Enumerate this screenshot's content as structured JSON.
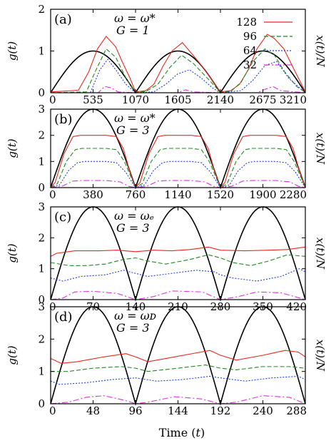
{
  "xlabel": "Time (t)",
  "ylabel_left": "g(t)",
  "ylabel_right": "x(t)/N",
  "legend": [
    "128",
    "96",
    "64",
    "32"
  ],
  "colors": {
    "128": "#e8291c",
    "96": "#1f8a1f",
    "64": "#2040e8",
    "32": "#e030e0",
    "x": "#000000"
  },
  "chart_data": [
    {
      "type": "line",
      "label": "(a)",
      "omega": "ω = ω*",
      "G": "G = 1",
      "xlim": [
        0,
        3210
      ],
      "ylim": [
        0,
        2
      ],
      "xticks": [
        0,
        535,
        1070,
        1605,
        2140,
        2675,
        3210
      ],
      "yticks": [
        0,
        1,
        2
      ],
      "period": 1070,
      "x_amplitude": 1,
      "series": [
        {
          "name": "128",
          "x": [
            0,
            350,
            480,
            590,
            700,
            820,
            900,
            1000,
            1070,
            1200,
            1300,
            1420,
            1530,
            1660,
            1750,
            1860,
            2000,
            2140,
            2270,
            2380,
            2490,
            2600,
            2730,
            2820,
            2940,
            3070,
            3210
          ],
          "y": [
            0.02,
            0.06,
            0.5,
            1.05,
            1.35,
            1.1,
            0.75,
            0.35,
            0.02,
            0.05,
            0.2,
            0.65,
            1.0,
            1.2,
            1.0,
            0.75,
            0.4,
            0.02,
            0.05,
            0.2,
            0.55,
            1.05,
            1.4,
            1.3,
            1.05,
            0.55,
            0.02
          ]
        },
        {
          "name": "96",
          "x": [
            0,
            450,
            560,
            700,
            820,
            950,
            1070,
            1200,
            1350,
            1500,
            1650,
            1800,
            2000,
            2140,
            2270,
            2400,
            2550,
            2700,
            2820,
            2950,
            3100,
            3210
          ],
          "y": [
            0.0,
            0.02,
            0.5,
            1.05,
            0.85,
            0.35,
            0.01,
            0.03,
            0.2,
            0.6,
            0.9,
            0.7,
            0.3,
            0.01,
            0.03,
            0.25,
            0.75,
            1.05,
            0.9,
            0.5,
            0.15,
            0.01
          ]
        },
        {
          "name": "64",
          "x": [
            0,
            500,
            620,
            720,
            820,
            950,
            1070,
            1300,
            1450,
            1600,
            1750,
            1900,
            2050,
            2140,
            2400,
            2550,
            2700,
            2850,
            3000,
            3210
          ],
          "y": [
            0.0,
            0.0,
            0.55,
            0.8,
            0.55,
            0.2,
            0.0,
            0.02,
            0.2,
            0.45,
            0.55,
            0.35,
            0.1,
            0.0,
            0.05,
            0.3,
            0.65,
            0.75,
            0.35,
            0.0
          ]
        },
        {
          "name": "32",
          "x": [
            0,
            600,
            680,
            760,
            850,
            1070,
            1600,
            1700,
            1800,
            2140,
            2600,
            2700,
            2800,
            2900,
            3210
          ],
          "y": [
            0.0,
            0.0,
            0.15,
            0.12,
            0.02,
            0.0,
            0.0,
            0.07,
            0.02,
            0.0,
            0.0,
            0.08,
            0.15,
            0.05,
            0.0
          ]
        }
      ]
    },
    {
      "type": "line",
      "label": "(b)",
      "omega": "ω = ω*",
      "G": "G = 3",
      "xlim": [
        0,
        2280
      ],
      "ylim": [
        0,
        3
      ],
      "xticks": [
        0,
        380,
        760,
        1140,
        1520,
        1900,
        2280
      ],
      "yticks": [
        0,
        1,
        2,
        3
      ],
      "period": 760,
      "x_amplitude": 3,
      "series": [
        {
          "name": "128",
          "x": [
            0,
            40,
            120,
            200,
            260,
            500,
            590,
            650,
            710,
            760,
            800,
            880,
            960,
            1020,
            1260,
            1350,
            1410,
            1470,
            1520,
            1560,
            1640,
            1720,
            1780,
            2020,
            2110,
            2170,
            2230,
            2280
          ],
          "y": [
            0.0,
            0.2,
            1.3,
            1.95,
            2.0,
            2.0,
            1.95,
            1.5,
            0.6,
            0.0,
            0.2,
            1.3,
            1.95,
            2.0,
            2.0,
            1.95,
            1.5,
            0.6,
            0.0,
            0.2,
            1.3,
            1.95,
            2.0,
            2.0,
            1.95,
            1.5,
            0.6,
            0.0
          ]
        },
        {
          "name": "96",
          "x": [
            0,
            60,
            140,
            220,
            280,
            500,
            590,
            660,
            720,
            760,
            820,
            900,
            980,
            1040,
            1260,
            1350,
            1420,
            1480,
            1520,
            1580,
            1660,
            1740,
            1800,
            2020,
            2110,
            2180,
            2240,
            2280
          ],
          "y": [
            0.0,
            0.15,
            1.0,
            1.45,
            1.5,
            1.5,
            1.45,
            1.0,
            0.4,
            0.0,
            0.15,
            1.0,
            1.45,
            1.5,
            1.5,
            1.45,
            1.0,
            0.4,
            0.0,
            0.15,
            1.0,
            1.45,
            1.5,
            1.5,
            1.45,
            1.0,
            0.4,
            0.0
          ]
        },
        {
          "name": "64",
          "x": [
            0,
            80,
            160,
            240,
            300,
            500,
            590,
            670,
            730,
            760,
            840,
            920,
            1000,
            1060,
            1260,
            1350,
            1430,
            1490,
            1520,
            1600,
            1680,
            1760,
            1820,
            2020,
            2110,
            2190,
            2250,
            2280
          ],
          "y": [
            0.0,
            0.1,
            0.65,
            0.95,
            1.0,
            1.0,
            0.95,
            0.6,
            0.2,
            0.0,
            0.1,
            0.65,
            0.95,
            1.0,
            1.0,
            0.95,
            0.6,
            0.2,
            0.0,
            0.1,
            0.65,
            0.95,
            1.0,
            1.0,
            0.95,
            0.6,
            0.2,
            0.0
          ]
        },
        {
          "name": "32",
          "x": [
            0,
            100,
            200,
            280,
            500,
            620,
            700,
            760,
            860,
            960,
            1040,
            1260,
            1380,
            1460,
            1520,
            1620,
            1720,
            1800,
            2020,
            2140,
            2220,
            2280
          ],
          "y": [
            0.0,
            0.05,
            0.25,
            0.27,
            0.27,
            0.22,
            0.05,
            0.0,
            0.05,
            0.25,
            0.27,
            0.27,
            0.22,
            0.05,
            0.0,
            0.05,
            0.25,
            0.27,
            0.27,
            0.22,
            0.05,
            0.0
          ]
        }
      ]
    },
    {
      "type": "line",
      "label": "(c)",
      "omega": "ω = ω_E",
      "G": "G = 3",
      "xlim": [
        0,
        420
      ],
      "ylim": [
        0,
        3
      ],
      "xticks": [
        0,
        70,
        140,
        210,
        280,
        350,
        420
      ],
      "yticks": [
        0,
        1,
        2,
        3
      ],
      "period": 140,
      "x_amplitude": 3,
      "series": [
        {
          "name": "128",
          "x": [
            0,
            10,
            40,
            80,
            110,
            140,
            170,
            200,
            230,
            260,
            280,
            320,
            360,
            390,
            420
          ],
          "y": [
            1.4,
            1.5,
            1.58,
            1.58,
            1.6,
            1.55,
            1.6,
            1.58,
            1.62,
            1.7,
            1.6,
            1.58,
            1.6,
            1.62,
            1.7
          ]
        },
        {
          "name": "96",
          "x": [
            0,
            30,
            60,
            90,
            120,
            140,
            160,
            190,
            230,
            260,
            280,
            300,
            330,
            360,
            390,
            420
          ],
          "y": [
            1.2,
            1.1,
            1.1,
            1.15,
            1.3,
            1.35,
            1.25,
            1.15,
            1.3,
            1.45,
            1.35,
            1.2,
            1.1,
            1.25,
            1.45,
            1.4
          ]
        },
        {
          "name": "64",
          "x": [
            0,
            20,
            50,
            90,
            120,
            140,
            160,
            200,
            240,
            270,
            280,
            300,
            340,
            380,
            410,
            420
          ],
          "y": [
            0.7,
            0.6,
            0.75,
            0.8,
            0.95,
            0.85,
            0.75,
            0.85,
            0.95,
            0.9,
            0.8,
            0.7,
            0.6,
            0.75,
            1.0,
            0.9
          ]
        },
        {
          "name": "32",
          "x": [
            0,
            20,
            40,
            70,
            110,
            140,
            170,
            200,
            250,
            280,
            310,
            340,
            380,
            420
          ],
          "y": [
            0.0,
            0.05,
            0.25,
            0.27,
            0.2,
            0.0,
            0.1,
            0.28,
            0.25,
            0.0,
            0.1,
            0.25,
            0.22,
            0.0
          ]
        }
      ]
    },
    {
      "type": "line",
      "label": "(d)",
      "omega": "ω = ω_D",
      "G": "G = 3",
      "xlim": [
        0,
        288
      ],
      "ylim": [
        0,
        3
      ],
      "xticks": [
        0,
        48,
        96,
        144,
        192,
        240,
        288
      ],
      "yticks": [
        0,
        1,
        2,
        3
      ],
      "period": 96,
      "x_amplitude": 3,
      "series": [
        {
          "name": "128",
          "x": [
            0,
            12,
            30,
            60,
            85,
            96,
            110,
            130,
            160,
            180,
            192,
            210,
            240,
            265,
            280,
            288
          ],
          "y": [
            1.4,
            1.25,
            1.3,
            1.45,
            1.55,
            1.45,
            1.3,
            1.4,
            1.55,
            1.65,
            1.5,
            1.35,
            1.5,
            1.65,
            1.6,
            1.45
          ]
        },
        {
          "name": "96",
          "x": [
            0,
            20,
            48,
            80,
            96,
            110,
            144,
            175,
            192,
            210,
            240,
            270,
            288
          ],
          "y": [
            1.0,
            1.0,
            1.1,
            1.15,
            1.1,
            1.0,
            1.1,
            1.2,
            1.1,
            1.05,
            1.15,
            1.15,
            1.1
          ]
        },
        {
          "name": "64",
          "x": [
            0,
            10,
            40,
            70,
            96,
            120,
            150,
            180,
            192,
            220,
            250,
            280,
            288
          ],
          "y": [
            0.7,
            0.6,
            0.65,
            0.75,
            0.8,
            0.7,
            0.75,
            0.85,
            0.8,
            0.7,
            0.8,
            0.85,
            0.75
          ]
        },
        {
          "name": "32",
          "x": [
            0,
            20,
            40,
            60,
            85,
            96,
            110,
            140,
            170,
            192,
            210,
            240,
            270,
            288
          ],
          "y": [
            0.0,
            0.05,
            0.2,
            0.25,
            0.1,
            0.0,
            0.05,
            0.22,
            0.15,
            0.0,
            0.05,
            0.25,
            0.2,
            0.0
          ]
        }
      ]
    }
  ]
}
